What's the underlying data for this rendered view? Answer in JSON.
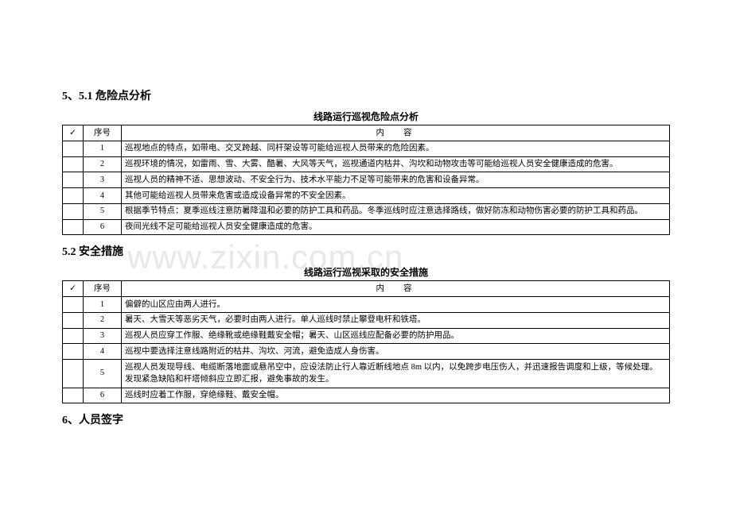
{
  "watermark": "www.zixin.com.cn",
  "section51": {
    "title": "5、5.1  危险点分析",
    "caption": "线路运行巡视危险点分析",
    "header": {
      "check": "✓",
      "seq": "序号",
      "content": "内容"
    },
    "rows": [
      {
        "n": "1",
        "t": "巡视地点的特点，如带电、交叉跨越、同杆架设等可能给巡视人员带来的危险因素。"
      },
      {
        "n": "2",
        "t": "巡视环境的情况，如雷雨、雪、大雾、酷暑、大风等天气，巡视通道内枯井、沟坎和动物攻击等可能给巡视人员安全健康造成的危害。"
      },
      {
        "n": "3",
        "t": "巡视人员的精神不适、思想波动、不安全行为、技术水平能力不足等可能带来的危害和设备异常。"
      },
      {
        "n": "4",
        "t": "其他可能给巡视人员带来危害或造成设备异常的不安全因素。"
      },
      {
        "n": "5",
        "t": "根据季节特点：夏季巡线注意防暑降温和必要的防护工具和药品。冬季巡线时应注意选择路线，做好防冻和动物伤害必要的防护工具和药品。"
      },
      {
        "n": "6",
        "t": "夜间光线不足可能给巡视人员安全健康造成的危害。"
      }
    ]
  },
  "section52": {
    "title": "5.2  安全措施",
    "caption": "线路运行巡视采取的安全措施",
    "header": {
      "check": "✓",
      "seq": "序号",
      "content": "内容"
    },
    "rows": [
      {
        "n": "1",
        "t": "偏僻的山区应由两人进行。"
      },
      {
        "n": "2",
        "t": "暑天、大雪天等恶劣天气，必要时由两人进行。单人巡线时禁止攀登电杆和铁塔。"
      },
      {
        "n": "3",
        "t": "巡视人员应穿工作服、绝缘靴或绝缘鞋戴安全帽；暑天、山区巡线应配备必要的防护用品。"
      },
      {
        "n": "4",
        "t": "巡视中要选择注意线路附近的枯井、沟坎、河流，避免造成人身伤害。"
      },
      {
        "n": "5",
        "t": "巡视人员发现导线、电缆断落地面或悬吊空中，应设法防止行人靠近断线地点 8m 以内，以免跨步电压伤人，并迅速报告调度和上级，等候处理。发现紧急缺陷和杆塔倾斜应立即汇报，避免事故的发生。"
      },
      {
        "n": "6",
        "t": "巡线时应着工作服，穿绝缘鞋、戴安全帽。"
      }
    ]
  },
  "section6": {
    "title": "6、人员签字"
  }
}
